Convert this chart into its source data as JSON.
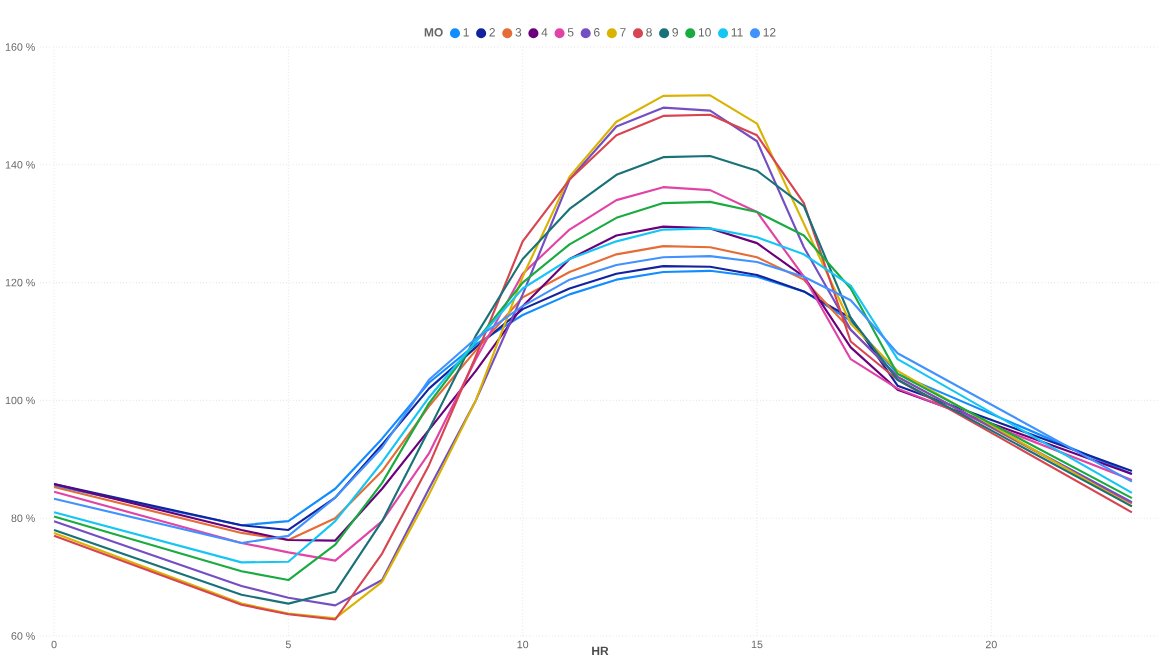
{
  "chart_data": {
    "type": "line",
    "xlabel": "HR",
    "legend_title": "MO",
    "legend": "top",
    "grid": true,
    "line_style": "solid",
    "marker": "none",
    "x": [
      0,
      4,
      5,
      6,
      7,
      8,
      9,
      10,
      11,
      12,
      13,
      14,
      15,
      16,
      17,
      18,
      23
    ],
    "xlim": [
      -0.3,
      23.6
    ],
    "xticks": [
      0,
      5,
      10,
      15,
      20
    ],
    "ylim": [
      60,
      160
    ],
    "yticks": [
      {
        "value": 60,
        "label": "60 %"
      },
      {
        "value": 80,
        "label": "80 %"
      },
      {
        "value": 100,
        "label": "100 %"
      },
      {
        "value": 120,
        "label": "120 %"
      },
      {
        "value": 140,
        "label": "140 %"
      },
      {
        "value": 160,
        "label": "160 %"
      }
    ],
    "series": [
      {
        "name": "1",
        "color": "#118dff",
        "values": [
          85.5,
          78.8,
          79.5,
          85,
          93.5,
          103,
          109.5,
          114.5,
          118,
          120.5,
          121.8,
          122,
          121,
          118.5,
          113.5,
          104.5,
          87.5
        ]
      },
      {
        "name": "2",
        "color": "#12239e",
        "values": [
          85.8,
          78.8,
          78,
          83.5,
          92.5,
          102,
          109,
          115.5,
          119,
          121.5,
          122.8,
          122.7,
          121.3,
          118.5,
          114,
          102.5,
          88
        ]
      },
      {
        "name": "3",
        "color": "#e66c37",
        "values": [
          85.3,
          77.5,
          76.3,
          80,
          88,
          99,
          108.5,
          117.5,
          121.8,
          124.8,
          126.2,
          126,
          124.3,
          120.5,
          112,
          104,
          82.5
        ]
      },
      {
        "name": "4",
        "color": "#6b007b",
        "values": [
          85.8,
          78,
          76.3,
          76.2,
          85,
          95,
          105,
          116,
          124,
          128,
          129.5,
          129.2,
          126.7,
          121,
          109,
          101.8,
          87.5
        ]
      },
      {
        "name": "5",
        "color": "#e044a7",
        "values": [
          84.5,
          75.8,
          74.2,
          72.8,
          79.5,
          91,
          107,
          121.5,
          129,
          134,
          136.2,
          135.7,
          132,
          121,
          107,
          102,
          86.5
        ]
      },
      {
        "name": "6",
        "color": "#744ec2",
        "values": [
          79.5,
          68.5,
          66.5,
          65.2,
          69.5,
          85,
          100,
          118,
          137.5,
          146.5,
          149.7,
          149.2,
          144,
          126,
          112,
          104,
          82.7
        ]
      },
      {
        "name": "7",
        "color": "#d9b300",
        "values": [
          77.5,
          65.5,
          63.8,
          63,
          69.2,
          84,
          100,
          121,
          138,
          147.3,
          151.7,
          151.8,
          147,
          130,
          113,
          105,
          82
        ]
      },
      {
        "name": "8",
        "color": "#d64550",
        "values": [
          77,
          65.3,
          63.7,
          62.8,
          74,
          89,
          107.5,
          127,
          137.5,
          145,
          148.3,
          148.5,
          145,
          133.5,
          110,
          103.5,
          81
        ]
      },
      {
        "name": "9",
        "color": "#197278",
        "values": [
          78,
          67,
          65.5,
          67.5,
          79.5,
          95,
          111,
          124,
          132.5,
          138.3,
          141.3,
          141.5,
          139,
          133,
          114,
          103.5,
          82
        ]
      },
      {
        "name": "10",
        "color": "#1aab40",
        "values": [
          80.3,
          71,
          69.5,
          75.5,
          86,
          99.5,
          110,
          120,
          126.5,
          131,
          133.5,
          133.7,
          132,
          128,
          119,
          104.5,
          83.4
        ]
      },
      {
        "name": "11",
        "color": "#15c6f4",
        "values": [
          81,
          72.5,
          72.6,
          79.5,
          89.5,
          100.5,
          110,
          119,
          124,
          127,
          129,
          129.2,
          127.7,
          124.8,
          119.5,
          107,
          84.3
        ]
      },
      {
        "name": "12",
        "color": "#4092ff",
        "values": [
          83.3,
          75.8,
          77,
          83.5,
          92,
          103.5,
          110.5,
          116,
          120.5,
          123,
          124.3,
          124.5,
          123.5,
          121,
          117,
          108,
          86.2
        ]
      }
    ]
  }
}
